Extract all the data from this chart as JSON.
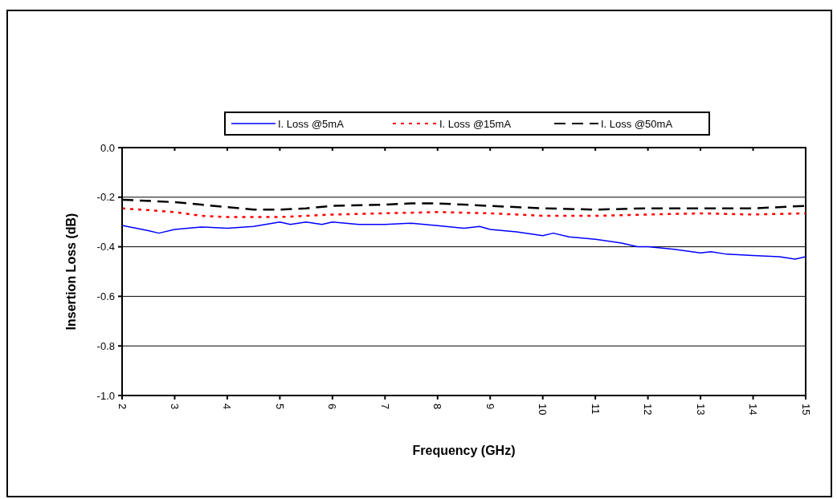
{
  "chart_data": {
    "type": "line",
    "xlabel": "Frequency (GHz)",
    "ylabel": "Insertion Loss (dB)",
    "xlim": [
      2,
      15
    ],
    "xticks": [
      2,
      3,
      4,
      5,
      6,
      7,
      8,
      9,
      10,
      11,
      12,
      13,
      14,
      15
    ],
    "ylim": [
      -1,
      0
    ],
    "yticks": [
      {
        "value": -1,
        "label": "-1.0"
      },
      {
        "value": -0.8,
        "label": "-0.8"
      },
      {
        "value": -0.6,
        "label": "-0.6"
      },
      {
        "value": -0.4,
        "label": "-0.4"
      },
      {
        "value": -0.2,
        "label": "-0.2"
      },
      {
        "value": 0,
        "label": "0.0"
      }
    ],
    "grid": "y",
    "legend": "top",
    "marker": "none",
    "series": [
      {
        "name": "I. Loss @5mA",
        "color": "#0000ff",
        "line_style": "solid",
        "x": [
          2,
          2.5,
          2.7,
          3,
          3.5,
          4,
          4.5,
          5,
          5.2,
          5.5,
          5.8,
          6,
          6.5,
          7,
          7.5,
          8,
          8.5,
          8.8,
          9,
          9.5,
          10,
          10.2,
          10.5,
          11,
          11.5,
          11.8,
          12,
          12.5,
          13,
          13.2,
          13.5,
          14,
          14.5,
          14.8,
          15
        ],
        "values": [
          -0.314,
          -0.335,
          -0.345,
          -0.33,
          -0.32,
          -0.325,
          -0.318,
          -0.3,
          -0.31,
          -0.3,
          -0.31,
          -0.3,
          -0.31,
          -0.31,
          -0.305,
          -0.315,
          -0.325,
          -0.318,
          -0.33,
          -0.34,
          -0.355,
          -0.345,
          -0.36,
          -0.37,
          -0.385,
          -0.4,
          -0.4,
          -0.41,
          -0.425,
          -0.42,
          -0.43,
          -0.435,
          -0.44,
          -0.45,
          -0.44
        ]
      },
      {
        "name": "I. Loss @15mA",
        "color": "#ff0000",
        "line_style": "dotted",
        "x": [
          2,
          3,
          3.5,
          4,
          5,
          5.5,
          6,
          7,
          8,
          9,
          10,
          11,
          12,
          13,
          14,
          15
        ],
        "values": [
          -0.245,
          -0.26,
          -0.275,
          -0.28,
          -0.28,
          -0.275,
          -0.27,
          -0.265,
          -0.26,
          -0.265,
          -0.275,
          -0.275,
          -0.27,
          -0.265,
          -0.27,
          -0.265
        ]
      },
      {
        "name": "I. Loss @50mA",
        "color": "#000000",
        "line_style": "dashed",
        "x": [
          2,
          3,
          3.5,
          4,
          4.5,
          5,
          5.5,
          6,
          7,
          7.5,
          8,
          8.5,
          9,
          10,
          11,
          12,
          13,
          14,
          15
        ],
        "values": [
          -0.21,
          -0.22,
          -0.23,
          -0.24,
          -0.25,
          -0.25,
          -0.245,
          -0.235,
          -0.23,
          -0.225,
          -0.225,
          -0.23,
          -0.235,
          -0.245,
          -0.25,
          -0.245,
          -0.245,
          -0.245,
          -0.235
        ]
      }
    ]
  }
}
